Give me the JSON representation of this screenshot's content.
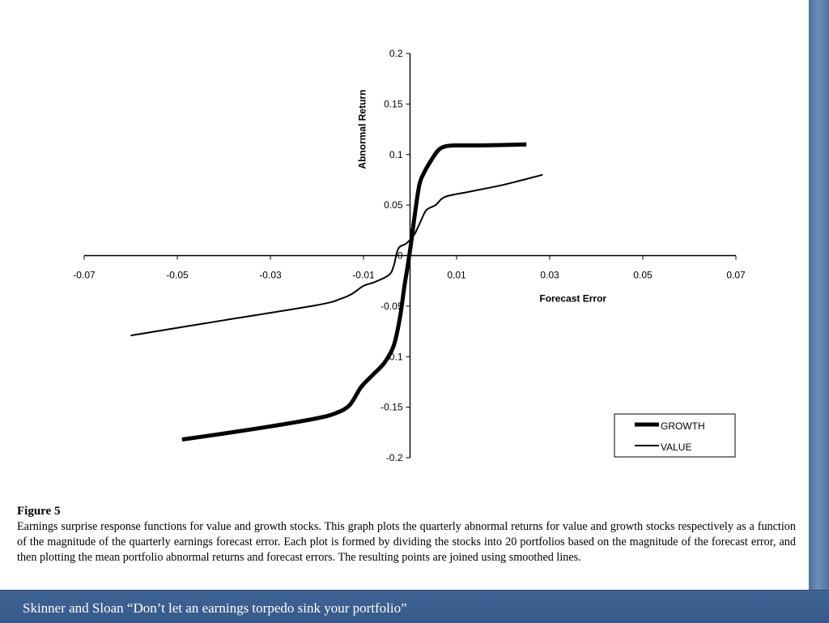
{
  "chart_data": {
    "type": "line",
    "title": "",
    "xlabel": "Forecast Error",
    "ylabel": "Abnormal Return",
    "xlim": [
      -0.07,
      0.07
    ],
    "ylim": [
      -0.2,
      0.2
    ],
    "x_ticks": [
      "-0.07",
      "-0.05",
      "-0.03",
      "-0.01",
      "0.01",
      "0.03",
      "0.05",
      "0.07"
    ],
    "y_ticks": [
      "0.2",
      "0.15",
      "0.1",
      "0.05",
      "0",
      "-0.05",
      "-0.1",
      "-0.15",
      "-0.2"
    ],
    "grid": false,
    "legend_position": "bottom-right",
    "series": [
      {
        "name": "GROWTH",
        "x": [
          -0.049,
          -0.04,
          -0.03,
          -0.02,
          -0.016,
          -0.013,
          -0.0105,
          -0.008,
          -0.0055,
          -0.0035,
          -0.0022,
          -0.0012,
          -0.0005,
          0.0003,
          0.001,
          0.002,
          0.003,
          0.0045,
          0.006,
          0.0075,
          0.01,
          0.015,
          0.025
        ],
        "y": [
          -0.182,
          -0.176,
          -0.169,
          -0.161,
          -0.156,
          -0.148,
          -0.13,
          -0.118,
          -0.106,
          -0.089,
          -0.062,
          -0.03,
          -0.01,
          0.015,
          0.04,
          0.07,
          0.082,
          0.094,
          0.104,
          0.108,
          0.109,
          0.109,
          0.11
        ]
      },
      {
        "name": "VALUE",
        "x": [
          -0.06,
          -0.04,
          -0.02,
          -0.015,
          -0.0125,
          -0.01,
          -0.0075,
          -0.0045,
          -0.0035,
          -0.0025,
          -0.0008,
          0.0008,
          0.0022,
          0.0035,
          0.0055,
          0.0075,
          0.0125,
          0.02,
          0.0285
        ],
        "y": [
          -0.079,
          -0.064,
          -0.049,
          -0.043,
          -0.038,
          -0.03,
          -0.026,
          -0.019,
          -0.01,
          0.007,
          0.012,
          0.02,
          0.033,
          0.045,
          0.05,
          0.058,
          0.063,
          0.07,
          0.08
        ]
      }
    ]
  },
  "figure": {
    "label": "Figure 5",
    "caption": "Earnings surprise response functions for value and growth stocks.  This graph plots the quarterly abnormal returns for value and growth stocks respectively as a function of the magnitude of the quarterly earnings forecast error.  Each plot is formed by dividing the stocks into 20 portfolios based on the magnitude of the forecast error, and then plotting the mean portfolio abnormal returns and forecast errors.  The resulting points are joined using smoothed lines."
  },
  "footer": {
    "text": "Skinner and Sloan “Don’t let an earnings torpedo sink your portfolio”"
  },
  "colors": {
    "slide_bar": "#3f6494",
    "line": "#000000"
  }
}
